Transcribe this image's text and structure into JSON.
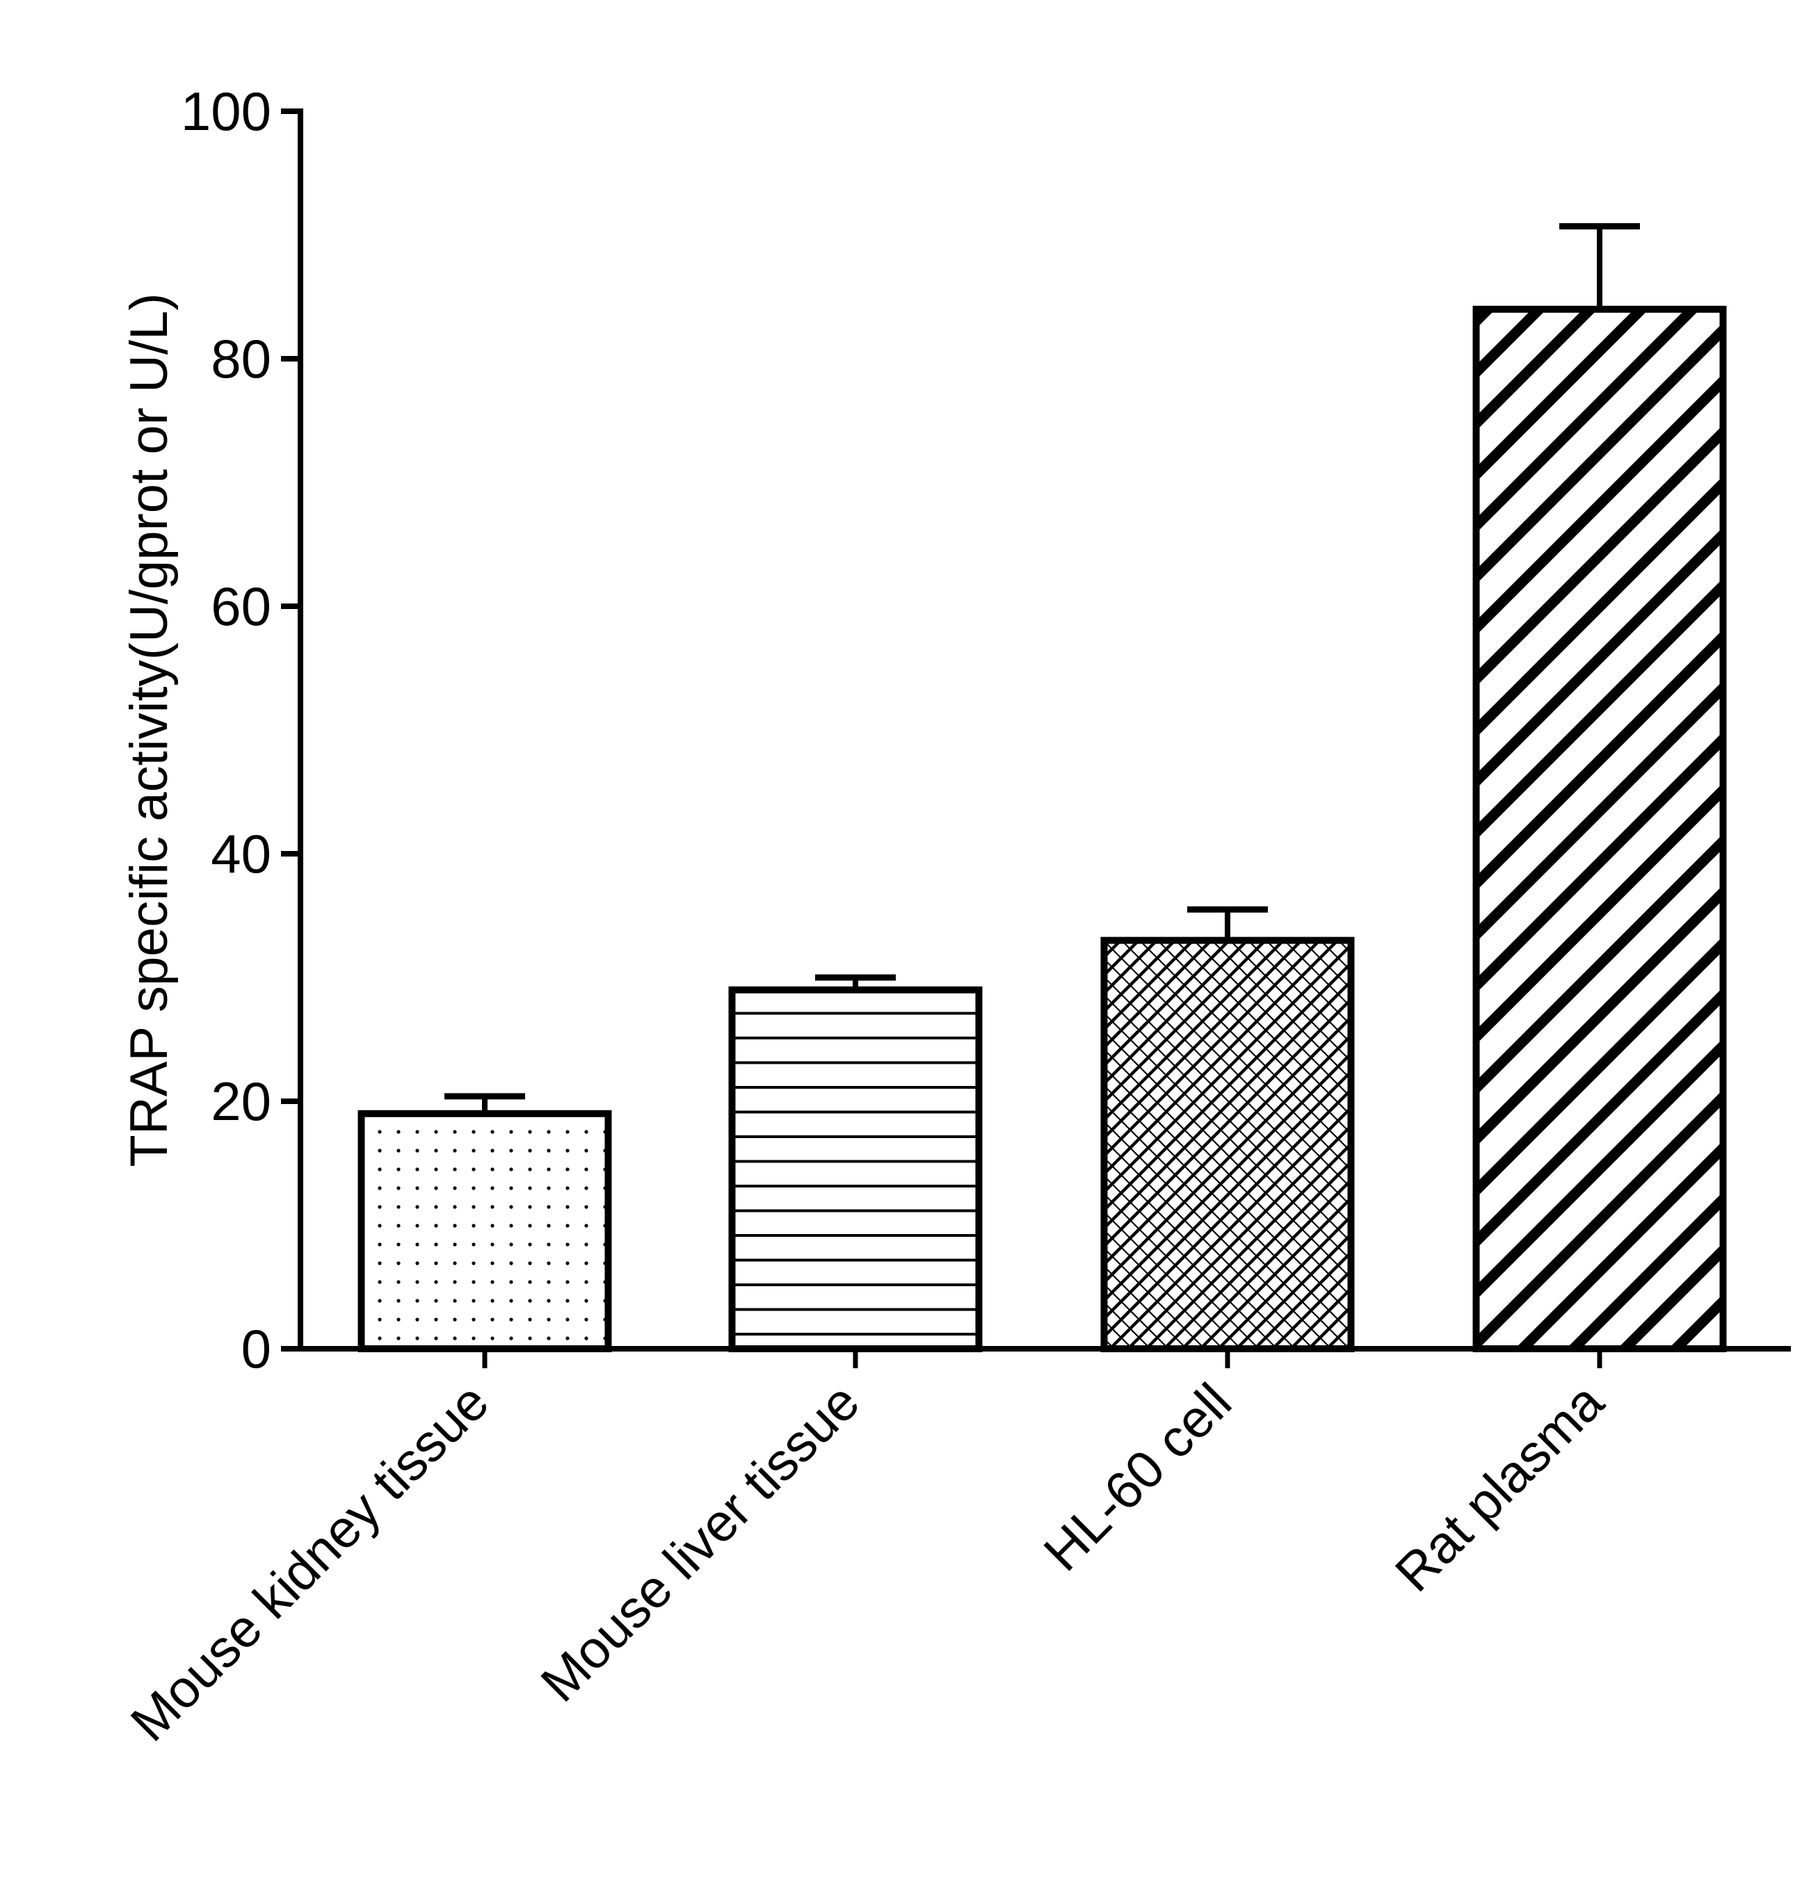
{
  "chart_data": {
    "type": "bar",
    "title": "",
    "xlabel": "",
    "ylabel": "TRAP specific activity(U/gprot or U/L)",
    "ylim": [
      0,
      100
    ],
    "yticks": [
      0,
      20,
      40,
      60,
      80,
      100
    ],
    "grid": false,
    "legend": "none",
    "categories": [
      "Mouse kidney tissue",
      "Mouse liver tissue",
      "HL-60 cell",
      "Rat plasma"
    ],
    "values": [
      19,
      29,
      33,
      84
    ],
    "error_upper": [
      20.4,
      30,
      35.5,
      90.7
    ],
    "bar_patterns": [
      "dots",
      "horizontal-lines",
      "crosshatch-dense",
      "diagonal-thick"
    ],
    "colors": {
      "ink": "#000000",
      "background": "#ffffff"
    }
  }
}
